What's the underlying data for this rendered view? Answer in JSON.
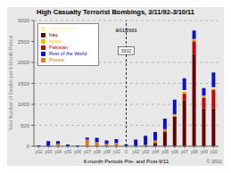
{
  "chart_data": {
    "type": "bar",
    "stacked": true,
    "title": "High Casualty Terrorist Bombings, 3/11/92-3/10/11",
    "xlabel": "6-month Periods Pre- and Post-9/11",
    "ylabel": "Total Number of Deaths per 6-Month Period",
    "categories": [
      "y02",
      "y03",
      "y04",
      "y05",
      "y06",
      "y07",
      "y08",
      "y09",
      "y10",
      "0",
      "y02",
      "y03",
      "y04",
      "y05",
      "y06",
      "y07",
      "y08",
      "y09",
      "y10"
    ],
    "series": [
      {
        "name": "Iraq",
        "color": "#6b0000",
        "values": [
          0,
          0,
          0,
          0,
          0,
          0,
          0,
          0,
          0,
          0,
          0,
          0,
          80,
          350,
          700,
          1100,
          2200,
          900,
          900
        ]
      },
      {
        "name": "Pakistan",
        "color": "#cc0000",
        "values": [
          0,
          0,
          0,
          0,
          0,
          0,
          0,
          0,
          0,
          0,
          0,
          0,
          0,
          0,
          0,
          150,
          300,
          250,
          450
        ]
      },
      {
        "name": "Russia",
        "color": "#e07820",
        "values": [
          0,
          0,
          60,
          0,
          0,
          160,
          100,
          60,
          80,
          0,
          0,
          30,
          60,
          60,
          30,
          30,
          30,
          30,
          0
        ]
      },
      {
        "name": "Israel",
        "color": "#e8c800",
        "values": [
          0,
          0,
          0,
          0,
          0,
          0,
          0,
          0,
          0,
          0,
          0,
          0,
          0,
          0,
          30,
          30,
          30,
          30,
          30
        ]
      },
      {
        "name": "Afghanistan",
        "color": "#f5f5aa",
        "values": [
          0,
          0,
          0,
          0,
          0,
          0,
          0,
          0,
          0,
          0,
          0,
          0,
          0,
          0,
          0,
          30,
          0,
          0,
          30
        ]
      },
      {
        "name": "Rest of the World",
        "color": "#1010cc",
        "values": [
          20,
          120,
          60,
          40,
          20,
          50,
          100,
          80,
          90,
          40,
          160,
          220,
          200,
          250,
          350,
          280,
          200,
          180,
          350
        ]
      }
    ],
    "ylim": [
      0,
      3000
    ],
    "yticks": [
      0,
      500,
      1000,
      1500,
      2000,
      2500,
      3000
    ],
    "grid": true,
    "legend": "upper left",
    "annotations": [
      {
        "text": "9/11/2001",
        "x": 9
      },
      {
        "text": "3932",
        "x": 9
      },
      {
        "text": "© 2011"
      }
    ]
  }
}
